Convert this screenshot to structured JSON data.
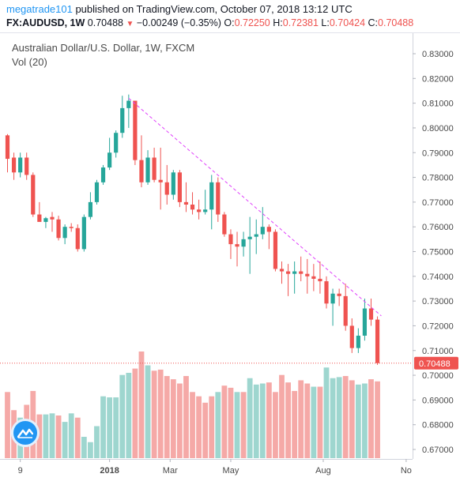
{
  "header": {
    "author": "megatrade101",
    "published_text": " published on TradingView.com, October 07, 2018 13:12 UTC",
    "symbol": "FX:AUDUSD, 1W",
    "price": "0.70488",
    "change_arrow": "▼",
    "change": "−0.00249 (−0.35%)",
    "o_label": "O:",
    "o_value": "0.72250",
    "h_label": "H:",
    "h_value": "0.72381",
    "l_label": "L:",
    "l_value": "0.70424",
    "c_label": "C:",
    "c_value": "0.70488"
  },
  "legend": {
    "title": "Australian Dollar/U.S. Dollar, 1W, FXCM",
    "volume": "Vol (20)"
  },
  "colors": {
    "up": "#26a69a",
    "down": "#ef5350",
    "up_volume": "#9ed6cf",
    "down_volume": "#f5a9a7",
    "trendline": "#e040fb",
    "price_line": "#ef5350",
    "logo": "#2196f3"
  },
  "icons": {
    "logo": "tradingview-logo-icon"
  },
  "chart_data": {
    "type": "candlestick",
    "timeframe": "1W",
    "y_axis_ticks": [
      "0.83000",
      "0.82000",
      "0.81000",
      "0.80000",
      "0.79000",
      "0.78000",
      "0.77000",
      "0.76000",
      "0.75000",
      "0.74000",
      "0.73000",
      "0.72000",
      "0.71000",
      "0.70000",
      "0.69000",
      "0.68000",
      "0.67000"
    ],
    "ylim": [
      0.665,
      0.835
    ],
    "x_axis_ticks": [
      "9",
      "2018",
      "Mar",
      "May",
      "Aug",
      "No"
    ],
    "last_price_label": "0.70488",
    "candles": [
      {
        "o": 0.797,
        "h": 0.7975,
        "l": 0.782,
        "c": 0.7875
      },
      {
        "o": 0.788,
        "h": 0.79,
        "l": 0.779,
        "c": 0.782
      },
      {
        "o": 0.782,
        "h": 0.79,
        "l": 0.78,
        "c": 0.788
      },
      {
        "o": 0.788,
        "h": 0.79,
        "l": 0.779,
        "c": 0.781
      },
      {
        "o": 0.781,
        "h": 0.782,
        "l": 0.764,
        "c": 0.765
      },
      {
        "o": 0.765,
        "h": 0.77,
        "l": 0.763,
        "c": 0.762
      },
      {
        "o": 0.762,
        "h": 0.764,
        "l": 0.7595,
        "c": 0.7635
      },
      {
        "o": 0.764,
        "h": 0.766,
        "l": 0.758,
        "c": 0.763
      },
      {
        "o": 0.763,
        "h": 0.7645,
        "l": 0.7545,
        "c": 0.7555
      },
      {
        "o": 0.7555,
        "h": 0.761,
        "l": 0.753,
        "c": 0.76
      },
      {
        "o": 0.76,
        "h": 0.7615,
        "l": 0.758,
        "c": 0.7595
      },
      {
        "o": 0.7595,
        "h": 0.761,
        "l": 0.75,
        "c": 0.751
      },
      {
        "o": 0.751,
        "h": 0.765,
        "l": 0.75,
        "c": 0.764
      },
      {
        "o": 0.764,
        "h": 0.774,
        "l": 0.763,
        "c": 0.77
      },
      {
        "o": 0.77,
        "h": 0.779,
        "l": 0.769,
        "c": 0.778
      },
      {
        "o": 0.778,
        "h": 0.785,
        "l": 0.777,
        "c": 0.784
      },
      {
        "o": 0.784,
        "h": 0.796,
        "l": 0.783,
        "c": 0.79
      },
      {
        "o": 0.79,
        "h": 0.799,
        "l": 0.788,
        "c": 0.798
      },
      {
        "o": 0.798,
        "h": 0.813,
        "l": 0.796,
        "c": 0.808
      },
      {
        "o": 0.808,
        "h": 0.8135,
        "l": 0.8,
        "c": 0.811
      },
      {
        "o": 0.811,
        "h": 0.811,
        "l": 0.785,
        "c": 0.787
      },
      {
        "o": 0.787,
        "h": 0.797,
        "l": 0.776,
        "c": 0.778
      },
      {
        "o": 0.778,
        "h": 0.791,
        "l": 0.777,
        "c": 0.788
      },
      {
        "o": 0.788,
        "h": 0.792,
        "l": 0.778,
        "c": 0.779
      },
      {
        "o": 0.779,
        "h": 0.792,
        "l": 0.767,
        "c": 0.778
      },
      {
        "o": 0.778,
        "h": 0.785,
        "l": 0.769,
        "c": 0.773
      },
      {
        "o": 0.773,
        "h": 0.783,
        "l": 0.771,
        "c": 0.782
      },
      {
        "o": 0.782,
        "h": 0.783,
        "l": 0.768,
        "c": 0.77
      },
      {
        "o": 0.77,
        "h": 0.778,
        "l": 0.766,
        "c": 0.769
      },
      {
        "o": 0.769,
        "h": 0.774,
        "l": 0.765,
        "c": 0.767
      },
      {
        "o": 0.767,
        "h": 0.771,
        "l": 0.763,
        "c": 0.766
      },
      {
        "o": 0.766,
        "h": 0.775,
        "l": 0.765,
        "c": 0.767
      },
      {
        "o": 0.767,
        "h": 0.781,
        "l": 0.759,
        "c": 0.778
      },
      {
        "o": 0.778,
        "h": 0.78,
        "l": 0.762,
        "c": 0.765
      },
      {
        "o": 0.765,
        "h": 0.766,
        "l": 0.756,
        "c": 0.757
      },
      {
        "o": 0.757,
        "h": 0.759,
        "l": 0.747,
        "c": 0.753
      },
      {
        "o": 0.753,
        "h": 0.758,
        "l": 0.744,
        "c": 0.752
      },
      {
        "o": 0.752,
        "h": 0.758,
        "l": 0.748,
        "c": 0.755
      },
      {
        "o": 0.755,
        "h": 0.764,
        "l": 0.741,
        "c": 0.756
      },
      {
        "o": 0.756,
        "h": 0.763,
        "l": 0.749,
        "c": 0.757
      },
      {
        "o": 0.757,
        "h": 0.768,
        "l": 0.755,
        "c": 0.76
      },
      {
        "o": 0.76,
        "h": 0.761,
        "l": 0.751,
        "c": 0.758
      },
      {
        "o": 0.758,
        "h": 0.759,
        "l": 0.742,
        "c": 0.743
      },
      {
        "o": 0.743,
        "h": 0.746,
        "l": 0.737,
        "c": 0.742
      },
      {
        "o": 0.742,
        "h": 0.745,
        "l": 0.732,
        "c": 0.741
      },
      {
        "o": 0.741,
        "h": 0.746,
        "l": 0.733,
        "c": 0.742
      },
      {
        "o": 0.742,
        "h": 0.748,
        "l": 0.738,
        "c": 0.741
      },
      {
        "o": 0.741,
        "h": 0.747,
        "l": 0.733,
        "c": 0.74
      },
      {
        "o": 0.74,
        "h": 0.745,
        "l": 0.734,
        "c": 0.739
      },
      {
        "o": 0.739,
        "h": 0.746,
        "l": 0.733,
        "c": 0.738
      },
      {
        "o": 0.738,
        "h": 0.74,
        "l": 0.727,
        "c": 0.729
      },
      {
        "o": 0.729,
        "h": 0.735,
        "l": 0.72,
        "c": 0.733
      },
      {
        "o": 0.733,
        "h": 0.735,
        "l": 0.728,
        "c": 0.732
      },
      {
        "o": 0.732,
        "h": 0.737,
        "l": 0.718,
        "c": 0.72
      },
      {
        "o": 0.72,
        "h": 0.723,
        "l": 0.709,
        "c": 0.711
      },
      {
        "o": 0.711,
        "h": 0.719,
        "l": 0.709,
        "c": 0.716
      },
      {
        "o": 0.716,
        "h": 0.731,
        "l": 0.714,
        "c": 0.727
      },
      {
        "o": 0.727,
        "h": 0.731,
        "l": 0.72,
        "c": 0.7225
      },
      {
        "o": 0.7225,
        "h": 0.7238,
        "l": 0.7042,
        "c": 0.7049
      }
    ],
    "volume": [
      {
        "v": 0.62,
        "up": false
      },
      {
        "v": 0.45,
        "up": false
      },
      {
        "v": 0.38,
        "up": true
      },
      {
        "v": 0.5,
        "up": false
      },
      {
        "v": 0.63,
        "up": false
      },
      {
        "v": 0.41,
        "up": false
      },
      {
        "v": 0.41,
        "up": true
      },
      {
        "v": 0.42,
        "up": true
      },
      {
        "v": 0.4,
        "up": false
      },
      {
        "v": 0.34,
        "up": true
      },
      {
        "v": 0.42,
        "up": true
      },
      {
        "v": 0.38,
        "up": false
      },
      {
        "v": 0.2,
        "up": true
      },
      {
        "v": 0.15,
        "up": true
      },
      {
        "v": 0.3,
        "up": true
      },
      {
        "v": 0.58,
        "up": true
      },
      {
        "v": 0.57,
        "up": true
      },
      {
        "v": 0.57,
        "up": true
      },
      {
        "v": 0.78,
        "up": true
      },
      {
        "v": 0.8,
        "up": true
      },
      {
        "v": 0.84,
        "up": false
      },
      {
        "v": 1.0,
        "up": false
      },
      {
        "v": 0.87,
        "up": true
      },
      {
        "v": 0.82,
        "up": false
      },
      {
        "v": 0.83,
        "up": false
      },
      {
        "v": 0.77,
        "up": false
      },
      {
        "v": 0.74,
        "up": false
      },
      {
        "v": 0.7,
        "up": false
      },
      {
        "v": 0.77,
        "up": false
      },
      {
        "v": 0.62,
        "up": false
      },
      {
        "v": 0.58,
        "up": false
      },
      {
        "v": 0.52,
        "up": false
      },
      {
        "v": 0.58,
        "up": false
      },
      {
        "v": 0.62,
        "up": true
      },
      {
        "v": 0.68,
        "up": false
      },
      {
        "v": 0.66,
        "up": false
      },
      {
        "v": 0.62,
        "up": true
      },
      {
        "v": 0.62,
        "up": false
      },
      {
        "v": 0.75,
        "up": true
      },
      {
        "v": 0.69,
        "up": true
      },
      {
        "v": 0.7,
        "up": true
      },
      {
        "v": 0.71,
        "up": false
      },
      {
        "v": 0.62,
        "up": false
      },
      {
        "v": 0.78,
        "up": false
      },
      {
        "v": 0.71,
        "up": false
      },
      {
        "v": 0.63,
        "up": false
      },
      {
        "v": 0.73,
        "up": false
      },
      {
        "v": 0.7,
        "up": false
      },
      {
        "v": 0.67,
        "up": true
      },
      {
        "v": 0.67,
        "up": false
      },
      {
        "v": 0.85,
        "up": true
      },
      {
        "v": 0.75,
        "up": true
      },
      {
        "v": 0.76,
        "up": true
      },
      {
        "v": 0.77,
        "up": false
      },
      {
        "v": 0.73,
        "up": false
      },
      {
        "v": 0.69,
        "up": true
      },
      {
        "v": 0.7,
        "up": true
      },
      {
        "v": 0.74,
        "up": false
      },
      {
        "v": 0.72,
        "up": false
      }
    ],
    "trendline": [
      {
        "bar": 19,
        "price": 0.812
      },
      {
        "bar": 58.6,
        "price": 0.724
      }
    ]
  }
}
